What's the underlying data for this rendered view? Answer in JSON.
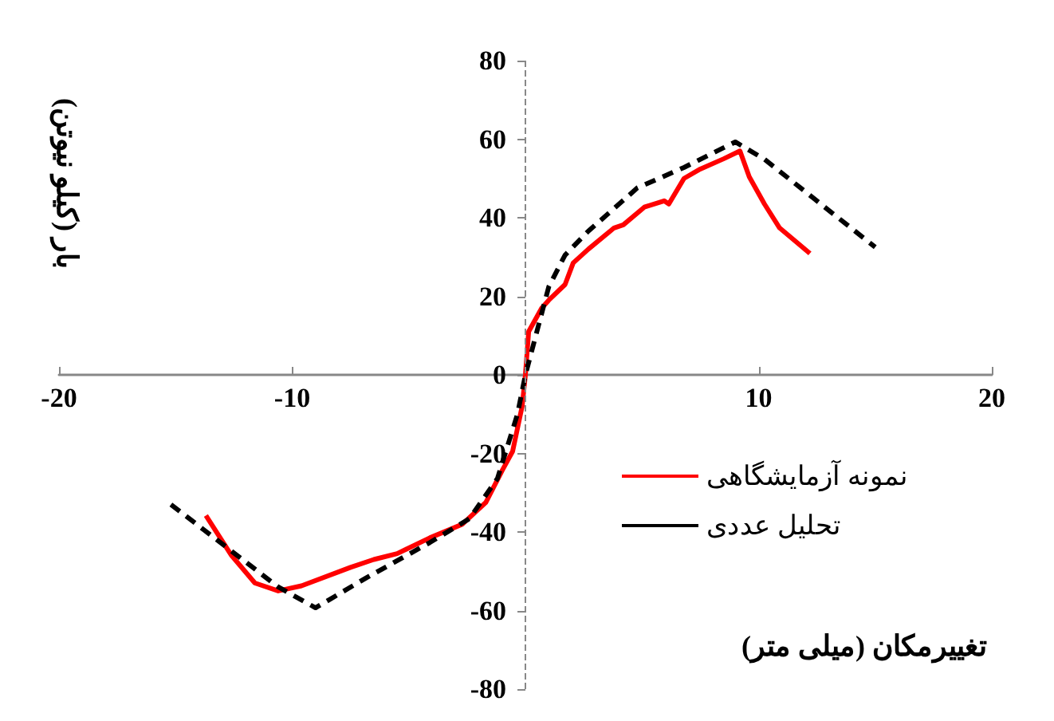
{
  "chart_data": {
    "type": "line",
    "xlabel": "تغییرمکان (میلی متر)",
    "ylabel": "بار (کیلو نیوتن)",
    "xlim": [
      -20,
      20
    ],
    "xticks": [
      -20,
      -10,
      10,
      20
    ],
    "ylim": [
      -80,
      80
    ],
    "yticks": [
      -80,
      -60,
      -40,
      -20,
      0,
      20,
      40,
      60,
      80
    ],
    "ref_lines": [
      {
        "axis": "x",
        "value": 0,
        "color": "#888888",
        "line_style": "dashed"
      }
    ],
    "grid": false,
    "legend": "bottom right",
    "marker": "none",
    "series": [
      {
        "name": "نمونه آزمایشگاهی",
        "color": "#ff0000",
        "line_style": "solid",
        "x": [
          -13.7,
          -12.6,
          -11.6,
          -10.6,
          -9.6,
          -7.5,
          -6.5,
          -5.5,
          -4.1,
          -2.7,
          -1.7,
          -1.0,
          -0.55,
          -0.14,
          0,
          0.14,
          0.7,
          1.0,
          1.7,
          2.05,
          2.7,
          3.8,
          4.2,
          5.1,
          5.95,
          6.15,
          6.8,
          7.5,
          8.5,
          9.2,
          9.6,
          10.25,
          10.9,
          12.2
        ],
        "values": [
          -35.8,
          -46,
          -53,
          -55,
          -53.7,
          -49,
          -47,
          -45.5,
          -41.5,
          -38,
          -32.5,
          -24.4,
          -19.5,
          -8,
          0,
          11,
          17,
          19,
          23,
          28.5,
          32,
          37.4,
          38.2,
          42.7,
          44.3,
          43.5,
          50,
          52.4,
          55,
          57,
          50.4,
          43.5,
          37.4,
          30.9
        ]
      },
      {
        "name": "تحلیل عددی",
        "color": "#000000",
        "line_style": "dashed",
        "x": [
          -15.2,
          -10.6,
          -9.0,
          -6.8,
          -4.1,
          -2.4,
          -1.2,
          -0.34,
          0,
          1.0,
          1.7,
          2.7,
          4.8,
          6.8,
          9.0,
          10.25,
          15.0
        ],
        "values": [
          -33,
          -54,
          -59.3,
          -51.6,
          -42.7,
          -36.6,
          -26.4,
          -10,
          0,
          22.4,
          30.5,
          36.6,
          47.6,
          52.8,
          59.3,
          54.9,
          32.5
        ]
      }
    ]
  }
}
